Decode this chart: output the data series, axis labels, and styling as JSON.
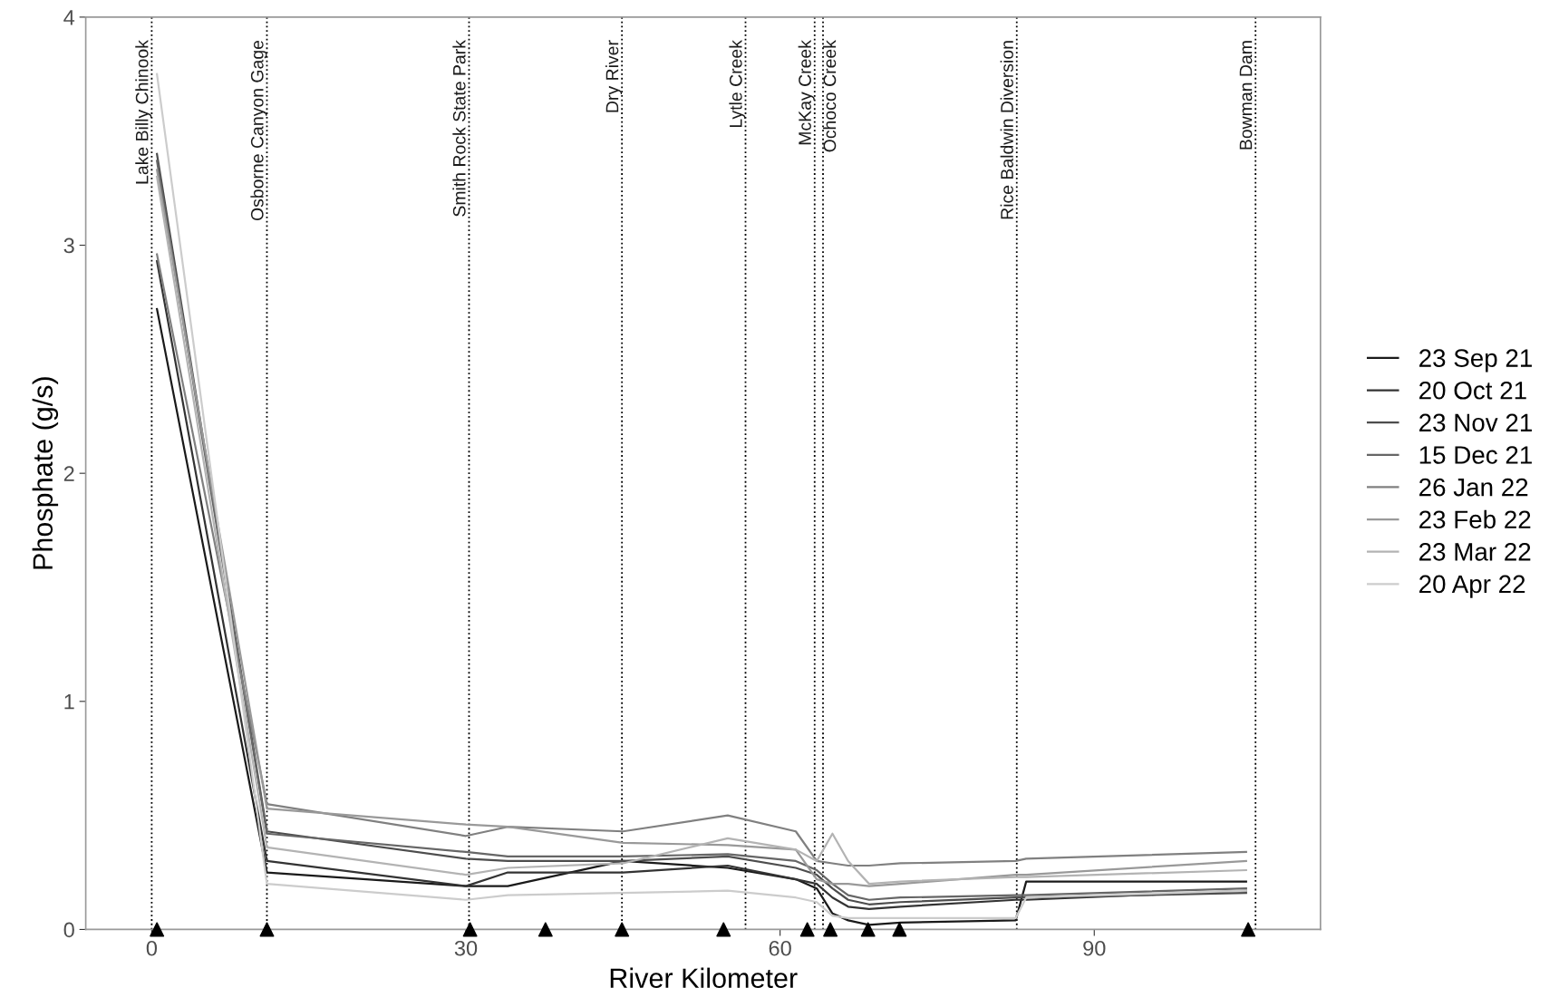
{
  "chart_data": {
    "type": "line",
    "xlabel": "River Kilometer",
    "ylabel": "Phosphate (g/s)",
    "xlim": [
      -6.3,
      111.6
    ],
    "ylim": [
      0,
      4
    ],
    "xticks": [
      0,
      30,
      60,
      90
    ],
    "yticks": [
      0,
      1,
      2,
      3,
      4
    ],
    "grid": false,
    "legend": "right",
    "line_style": "solid",
    "x": [
      0.5,
      11,
      30,
      34,
      45,
      55,
      61.5,
      63.5,
      65,
      66.5,
      68.5,
      71.5,
      82.5,
      83.5,
      104.5
    ],
    "series": [
      {
        "name": "23 Sep 21",
        "color": "#1a1a1a",
        "values": [
          2.72,
          0.25,
          0.19,
          0.19,
          0.3,
          0.27,
          0.22,
          0.18,
          0.07,
          0.04,
          0.02,
          0.03,
          0.04,
          0.21,
          0.21
        ]
      },
      {
        "name": "20 Oct 21",
        "color": "#333333",
        "values": [
          2.93,
          0.3,
          0.19,
          0.25,
          0.25,
          0.28,
          0.22,
          0.2,
          0.14,
          0.1,
          0.09,
          0.1,
          0.13,
          0.13,
          0.17
        ]
      },
      {
        "name": "23 Nov 21",
        "color": "#4d4d4d",
        "values": [
          3.4,
          0.43,
          0.31,
          0.3,
          0.3,
          0.32,
          0.27,
          0.24,
          0.18,
          0.13,
          0.11,
          0.12,
          0.14,
          0.14,
          0.16
        ]
      },
      {
        "name": "15 Dec 21",
        "color": "#666666",
        "values": [
          3.37,
          0.42,
          0.34,
          0.32,
          0.32,
          0.33,
          0.3,
          0.26,
          0.2,
          0.15,
          0.13,
          0.14,
          0.15,
          0.15,
          0.18
        ]
      },
      {
        "name": "26 Jan 22",
        "color": "#808080",
        "values": [
          2.96,
          0.55,
          0.41,
          0.45,
          0.43,
          0.5,
          0.43,
          0.3,
          0.29,
          0.28,
          0.28,
          0.29,
          0.3,
          0.31,
          0.34
        ]
      },
      {
        "name": "23 Feb 22",
        "color": "#999999",
        "values": [
          3.33,
          0.53,
          0.46,
          0.45,
          0.38,
          0.37,
          0.35,
          0.22,
          0.2,
          0.2,
          0.19,
          0.2,
          0.24,
          0.24,
          0.3
        ]
      },
      {
        "name": "23 Mar 22",
        "color": "#b3b3b3",
        "values": [
          3.3,
          0.36,
          0.24,
          0.27,
          0.29,
          0.4,
          0.35,
          0.3,
          0.42,
          0.3,
          0.2,
          0.21,
          0.23,
          0.23,
          0.26
        ]
      },
      {
        "name": "20 Apr 22",
        "color": "#cccccc",
        "values": [
          3.75,
          0.2,
          0.13,
          0.15,
          0.16,
          0.17,
          0.14,
          0.12,
          0.06,
          0.05,
          0.05,
          0.05,
          0.05,
          0.14,
          0.17
        ]
      },
      {
        "type": "scatter",
        "marker": "triangle",
        "color": "#000000",
        "x": [
          0.5,
          11,
          30.4,
          37.6,
          44.9,
          54.6,
          62.6,
          64.8,
          68.4,
          71.4,
          104.7
        ],
        "values": [
          0,
          0,
          0,
          0,
          0,
          0,
          0,
          0,
          0,
          0,
          0
        ]
      }
    ],
    "ref_lines": [
      {
        "axis": "x",
        "value": 0,
        "label": "Lake Billy Chinook",
        "line_style": "dotted",
        "color": "#000000"
      },
      {
        "axis": "x",
        "value": 11,
        "label": "Osborne Canyon Gage",
        "line_style": "dotted",
        "color": "#000000"
      },
      {
        "axis": "x",
        "value": 30.3,
        "label": "Smith Rock State Park",
        "line_style": "dotted",
        "color": "#000000"
      },
      {
        "axis": "x",
        "value": 44.9,
        "label": "Dry River",
        "line_style": "dotted",
        "color": "#000000"
      },
      {
        "axis": "x",
        "value": 56.7,
        "label": "Lytle Creek",
        "line_style": "dotted",
        "color": "#000000"
      },
      {
        "axis": "x",
        "value": 63.3,
        "label": "McKay Creek",
        "line_style": "dotted",
        "color": "#000000"
      },
      {
        "axis": "x",
        "value": 64.1,
        "label": "Ochoco Creek",
        "line_style": "dotted",
        "color": "#000000"
      },
      {
        "axis": "x",
        "value": 82.6,
        "label": "Rice Baldwin Diversion",
        "line_style": "dotted",
        "color": "#000000"
      },
      {
        "axis": "x",
        "value": 105.4,
        "label": "Bowman Dam",
        "line_style": "dotted",
        "color": "#000000"
      }
    ]
  }
}
